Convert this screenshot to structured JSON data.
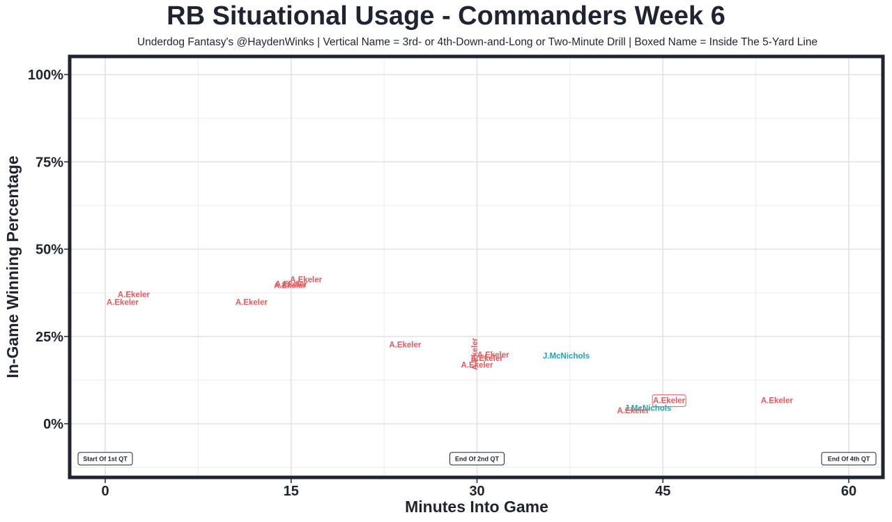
{
  "chart_data": {
    "type": "scatter",
    "title": "RB Situational Usage - Commanders Week 6",
    "subtitle": "Underdog Fantasy's @HaydenWinks | Vertical Name = 3rd- or 4th-Down-and-Long or Two-Minute Drill | Boxed Name = Inside The 5-Yard Line",
    "xlabel": "Minutes Into Game",
    "ylabel": "In-Game Winning Percentage",
    "xlim": [
      -2.3,
      62.6
    ],
    "ylim": [
      -12.5,
      105
    ],
    "x_ticks": [
      {
        "value": 0,
        "label": "0"
      },
      {
        "value": 15,
        "label": "15"
      },
      {
        "value": 30,
        "label": "30"
      },
      {
        "value": 45,
        "label": "45"
      },
      {
        "value": 60,
        "label": "60"
      }
    ],
    "y_ticks": [
      {
        "value": 0,
        "label": "0%"
      },
      {
        "value": 25,
        "label": "25%"
      },
      {
        "value": 50,
        "label": "50%"
      },
      {
        "value": 75,
        "label": "75%"
      },
      {
        "value": 100,
        "label": "100%"
      }
    ],
    "colors": {
      "A.Ekeler": "#e8585a",
      "J.McNichols": "#1aa7b0"
    },
    "points": [
      {
        "player": "A.Ekeler",
        "x": 2.3,
        "y": 37.0,
        "vertical": false,
        "boxed": false
      },
      {
        "player": "A.Ekeler",
        "x": 1.4,
        "y": 34.8,
        "vertical": false,
        "boxed": false
      },
      {
        "player": "A.Ekeler",
        "x": 11.8,
        "y": 34.8,
        "vertical": false,
        "boxed": false
      },
      {
        "player": "A.Ekeler",
        "x": 16.2,
        "y": 41.3,
        "vertical": false,
        "boxed": false
      },
      {
        "player": "A.Ekeler",
        "x": 15.0,
        "y": 40.0,
        "vertical": false,
        "boxed": false
      },
      {
        "player": "A.Ekeler",
        "x": 14.9,
        "y": 39.6,
        "vertical": false,
        "boxed": false
      },
      {
        "player": "A.Ekeler",
        "x": 24.2,
        "y": 22.7,
        "vertical": false,
        "boxed": false
      },
      {
        "player": "A.Ekeler",
        "x": 29.8,
        "y": 20.0,
        "vertical": true,
        "boxed": false
      },
      {
        "player": "A.Ekeler",
        "x": 31.3,
        "y": 19.8,
        "vertical": false,
        "boxed": false
      },
      {
        "player": "A.Ekeler",
        "x": 30.8,
        "y": 18.8,
        "vertical": false,
        "boxed": false
      },
      {
        "player": "A.Ekeler",
        "x": 30.0,
        "y": 16.9,
        "vertical": false,
        "boxed": false
      },
      {
        "player": "J.McNichols",
        "x": 37.2,
        "y": 19.5,
        "vertical": false,
        "boxed": false
      },
      {
        "player": "A.Ekeler",
        "x": 45.5,
        "y": 6.6,
        "vertical": false,
        "boxed": true
      },
      {
        "player": "J.McNichols",
        "x": 43.8,
        "y": 4.5,
        "vertical": false,
        "boxed": false
      },
      {
        "player": "A.Ekeler",
        "x": 42.6,
        "y": 3.8,
        "vertical": false,
        "boxed": false
      },
      {
        "player": "A.Ekeler",
        "x": 54.2,
        "y": 6.7,
        "vertical": false,
        "boxed": false
      }
    ],
    "annotations": [
      {
        "text": "Start Of 1st QT",
        "x": 0,
        "y": -10
      },
      {
        "text": "End Of 2nd QT",
        "x": 30,
        "y": -10
      },
      {
        "text": "End Of 4th QT",
        "x": 60,
        "y": -10
      }
    ],
    "grid": true,
    "legend": "none"
  }
}
